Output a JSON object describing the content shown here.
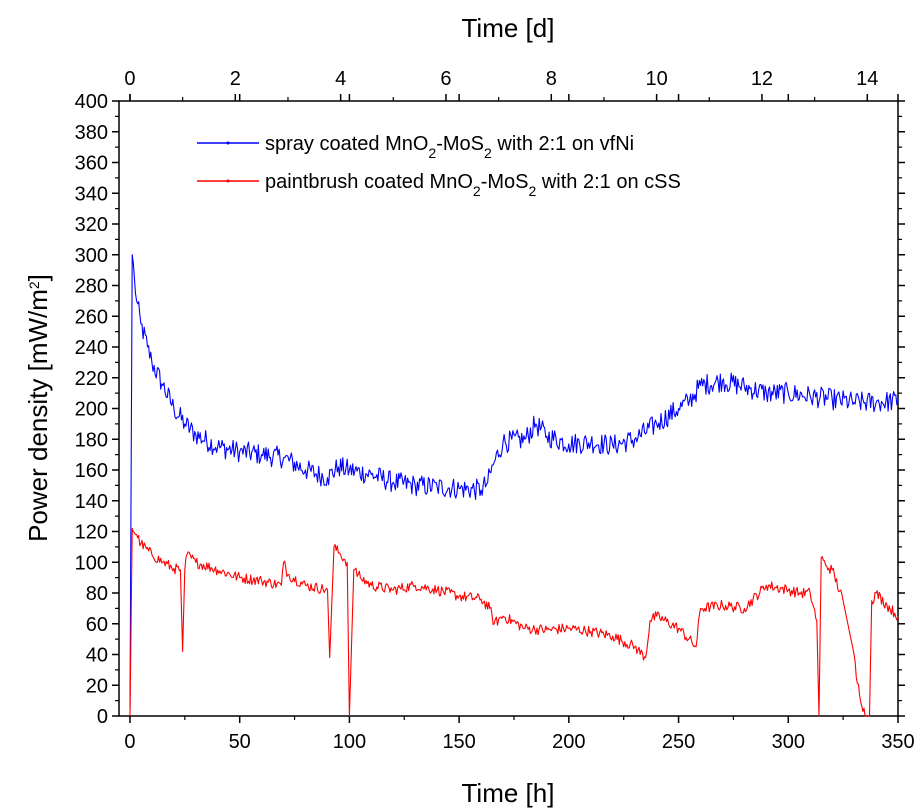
{
  "chart_data": {
    "type": "line",
    "title": "",
    "xlabel": "Time [h]",
    "x2label": "Time [d]",
    "ylabel_main": "Power density [mW/m",
    "ylabel_sup": "2",
    "ylabel_end": "]",
    "xlim": [
      -5,
      350
    ],
    "ylim": [
      0,
      400
    ],
    "x_ticks": [
      0,
      50,
      100,
      150,
      200,
      250,
      300,
      350
    ],
    "x2_ticks": [
      0,
      2,
      4,
      6,
      8,
      10,
      12,
      14
    ],
    "y_ticks": [
      0,
      20,
      40,
      60,
      80,
      100,
      120,
      140,
      160,
      180,
      200,
      220,
      240,
      260,
      280,
      300,
      320,
      340,
      360,
      380,
      400
    ],
    "grid": false,
    "legend_position": "top-center",
    "series": [
      {
        "label_prefix": "spray coated MnO",
        "label_sub1": "2",
        "label_mid": "-MoS",
        "label_sub2": "2",
        "label_suffix": " with 2:1 on vfNi",
        "color": "#0000ff",
        "x": [
          0,
          1,
          2,
          3,
          5,
          8,
          10,
          15,
          20,
          25,
          30,
          40,
          50,
          60,
          70,
          80,
          90,
          95,
          100,
          110,
          120,
          130,
          140,
          150,
          160,
          163,
          166,
          170,
          180,
          185,
          190,
          200,
          210,
          220,
          230,
          240,
          250,
          255,
          260,
          270,
          280,
          290,
          300,
          310,
          320,
          330,
          340,
          350
        ],
        "y": [
          5,
          300,
          285,
          270,
          255,
          240,
          230,
          215,
          200,
          190,
          183,
          175,
          172,
          170,
          168,
          160,
          155,
          162,
          160,
          157,
          152,
          150,
          149,
          148,
          147,
          152,
          165,
          178,
          180,
          190,
          182,
          177,
          178,
          176,
          180,
          190,
          200,
          205,
          215,
          218,
          214,
          210,
          210,
          208,
          206,
          204,
          204,
          205
        ]
      },
      {
        "label_prefix": "paintbrush coated MnO",
        "label_sub1": "2",
        "label_mid": "-MoS",
        "label_sub2": "2",
        "label_suffix": " with 2:1 on cSS",
        "color": "#ff0000",
        "x": [
          0,
          1,
          3,
          5,
          10,
          15,
          20,
          23,
          24,
          25,
          26,
          30,
          40,
          50,
          60,
          69,
          70,
          72,
          80,
          90,
          91,
          93,
          96,
          99,
          100,
          102,
          105,
          110,
          120,
          130,
          140,
          150,
          160,
          164,
          166,
          170,
          180,
          190,
          200,
          210,
          220,
          230,
          235,
          237,
          240,
          250,
          258,
          260,
          270,
          280,
          290,
          300,
          305,
          310,
          313,
          314,
          315,
          317,
          320,
          325,
          330,
          331,
          335,
          337,
          338,
          340,
          345,
          350
        ],
        "y": [
          0,
          122,
          118,
          112,
          105,
          100,
          96,
          95,
          42,
          95,
          105,
          100,
          95,
          90,
          88,
          85,
          100,
          92,
          85,
          82,
          38,
          110,
          105,
          100,
          0,
          95,
          90,
          85,
          82,
          85,
          82,
          78,
          76,
          70,
          60,
          65,
          57,
          56,
          57,
          55,
          52,
          45,
          38,
          62,
          65,
          57,
          45,
          70,
          72,
          70,
          85,
          82,
          80,
          80,
          62,
          0,
          103,
          98,
          95,
          75,
          40,
          25,
          0,
          0,
          75,
          80,
          72,
          65
        ]
      }
    ]
  }
}
